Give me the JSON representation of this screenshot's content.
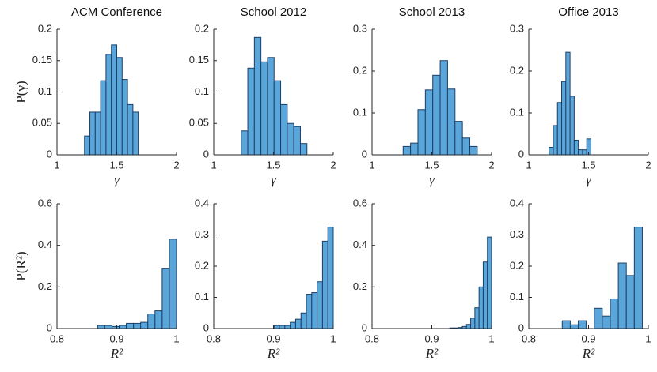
{
  "chart_data": [
    {
      "type": "histogram",
      "title": "ACM Conference",
      "xlabel": "γ",
      "ylabel": "P(γ)",
      "color": "#5aa5d9",
      "bins": [
        1.23,
        1.275,
        1.32,
        1.365,
        1.41,
        1.455,
        1.5,
        1.545,
        1.59,
        1.635,
        1.68
      ],
      "values": [
        0.03,
        0.068,
        0.068,
        0.118,
        0.16,
        0.175,
        0.155,
        0.12,
        0.08,
        0.068
      ],
      "xlim": [
        1,
        2
      ],
      "xticks": [
        1,
        1.5,
        2
      ],
      "ylim": [
        0,
        0.2
      ],
      "yticks": [
        0,
        0.05,
        0.1,
        0.15,
        0.2
      ]
    },
    {
      "type": "histogram",
      "title": "School 2012",
      "xlabel": "γ",
      "color": "#5aa5d9",
      "bins": [
        1.23,
        1.285,
        1.34,
        1.395,
        1.45,
        1.505,
        1.56,
        1.615,
        1.67,
        1.725,
        1.78
      ],
      "values": [
        0.038,
        0.138,
        0.187,
        0.148,
        0.155,
        0.118,
        0.08,
        0.05,
        0.045,
        0.018
      ],
      "xlim": [
        1,
        2
      ],
      "xticks": [
        1,
        1.5,
        2
      ],
      "ylim": [
        0,
        0.2
      ],
      "yticks": [
        0,
        0.05,
        0.1,
        0.15,
        0.2
      ]
    },
    {
      "type": "histogram",
      "title": "School 2013",
      "xlabel": "γ",
      "color": "#5aa5d9",
      "bins": [
        1.26,
        1.322,
        1.384,
        1.446,
        1.508,
        1.57,
        1.632,
        1.694,
        1.756,
        1.818,
        1.88
      ],
      "values": [
        0.02,
        0.028,
        0.108,
        0.155,
        0.19,
        0.225,
        0.157,
        0.08,
        0.04,
        0.02
      ],
      "xlim": [
        1,
        2
      ],
      "xticks": [
        1,
        1.5,
        2
      ],
      "ylim": [
        0,
        0.3
      ],
      "yticks": [
        0,
        0.1,
        0.2,
        0.3
      ]
    },
    {
      "type": "histogram",
      "title": "Office 2013",
      "xlabel": "γ",
      "color": "#5aa5d9",
      "bins": [
        1.17,
        1.205,
        1.24,
        1.275,
        1.31,
        1.345,
        1.38,
        1.415,
        1.45,
        1.485,
        1.52
      ],
      "values": [
        0.018,
        0.07,
        0.125,
        0.175,
        0.245,
        0.14,
        0.035,
        0.012,
        0.012,
        0.038
      ],
      "xlim": [
        1,
        2
      ],
      "xticks": [
        1,
        1.5,
        2
      ],
      "ylim": [
        0,
        0.3
      ],
      "yticks": [
        0,
        0.1,
        0.2,
        0.3
      ]
    },
    {
      "type": "histogram",
      "xlabel": "R²",
      "ylabel": "P(R²)",
      "color": "#5aa5d9",
      "bins": [
        0.868,
        0.88,
        0.892,
        0.904,
        0.916,
        0.928,
        0.94,
        0.952,
        0.964,
        0.976,
        0.988,
        1.0
      ],
      "values": [
        0.015,
        0.015,
        0.01,
        0.015,
        0.025,
        0.025,
        0.03,
        0.07,
        0.085,
        0.29,
        0.43
      ],
      "xlim": [
        0.8,
        1
      ],
      "xticks": [
        0.8,
        0.9,
        1
      ],
      "ylim": [
        0,
        0.6
      ],
      "yticks": [
        0,
        0.2,
        0.4,
        0.6
      ]
    },
    {
      "type": "histogram",
      "xlabel": "R²",
      "color": "#5aa5d9",
      "bins": [
        0.901,
        0.91,
        0.919,
        0.928,
        0.937,
        0.946,
        0.955,
        0.964,
        0.973,
        0.982,
        0.991,
        1.0
      ],
      "values": [
        0.01,
        0.01,
        0.01,
        0.02,
        0.03,
        0.05,
        0.11,
        0.115,
        0.15,
        0.28,
        0.325
      ],
      "xlim": [
        0.8,
        1
      ],
      "xticks": [
        0.8,
        0.9,
        1
      ],
      "ylim": [
        0,
        0.4
      ],
      "yticks": [
        0,
        0.1,
        0.2,
        0.3,
        0.4
      ]
    },
    {
      "type": "histogram",
      "xlabel": "R²",
      "color": "#5aa5d9",
      "bins": [
        0.93,
        0.937,
        0.944,
        0.951,
        0.958,
        0.965,
        0.972,
        0.979,
        0.986,
        0.993,
        1.0
      ],
      "values": [
        0.003,
        0.003,
        0.005,
        0.01,
        0.02,
        0.05,
        0.1,
        0.2,
        0.32,
        0.44
      ],
      "xlim": [
        0.8,
        1
      ],
      "xticks": [
        0.8,
        0.9,
        1
      ],
      "ylim": [
        0,
        0.6
      ],
      "yticks": [
        0,
        0.2,
        0.4,
        0.6
      ]
    },
    {
      "type": "histogram",
      "xlabel": "R²",
      "color": "#5aa5d9",
      "bins": [
        0.856,
        0.8694,
        0.8828,
        0.8962,
        0.9096,
        0.923,
        0.9364,
        0.9498,
        0.9632,
        0.9766,
        0.99
      ],
      "values": [
        0.025,
        0.012,
        0.025,
        0,
        0.065,
        0.04,
        0.095,
        0.21,
        0.17,
        0.325
      ],
      "xlim": [
        0.8,
        1
      ],
      "xticks": [
        0.8,
        0.9,
        1
      ],
      "ylim": [
        0,
        0.4
      ],
      "yticks": [
        0,
        0.1,
        0.2,
        0.3,
        0.4
      ]
    }
  ]
}
